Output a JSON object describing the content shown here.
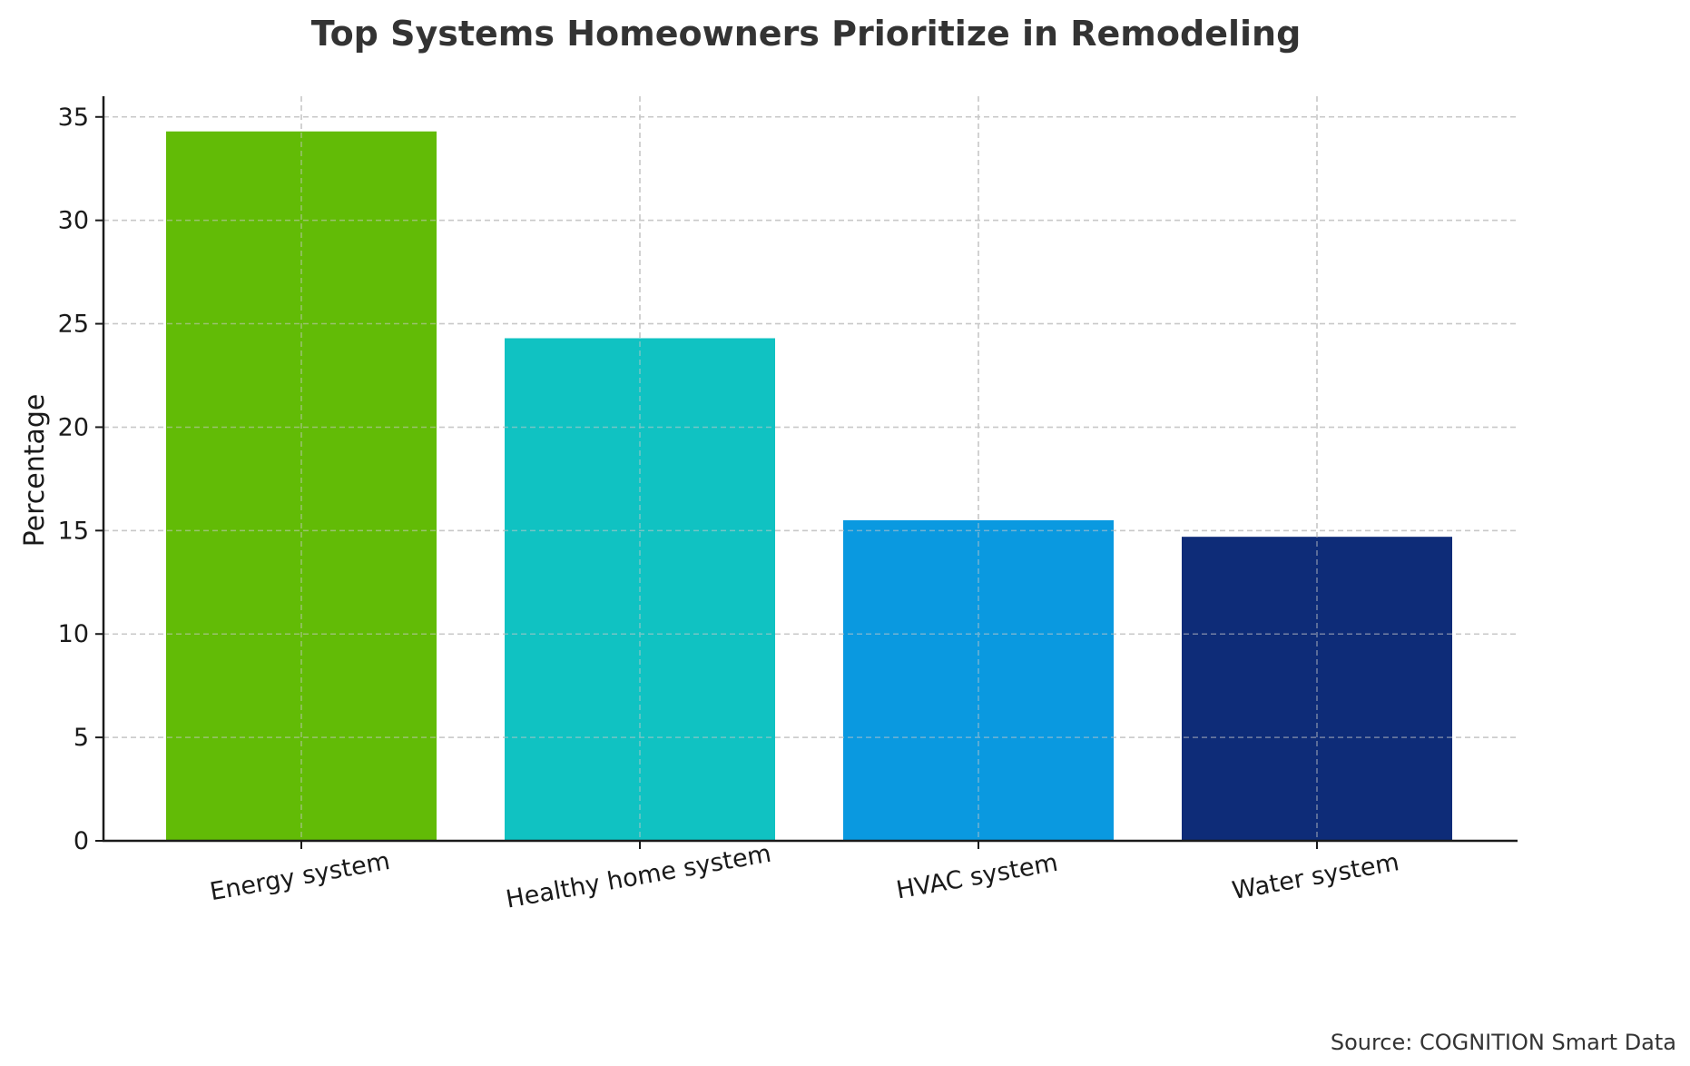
{
  "chart_data": {
    "type": "bar",
    "title": "Top Systems Homeowners Prioritize in Remodeling",
    "xlabel": "",
    "ylabel": "Percentage",
    "categories": [
      "Energy system",
      "Healthy home system",
      "HVAC system",
      "Water system"
    ],
    "values": [
      34.3,
      24.3,
      15.5,
      14.7
    ],
    "colors": [
      "#62bb06",
      "#10c2c2",
      "#0a99e0",
      "#0e2c78"
    ],
    "ylim": [
      0,
      36
    ],
    "yticks": [
      0,
      5,
      10,
      15,
      20,
      25,
      30,
      35
    ],
    "grid": true,
    "source": "Source: COGNITION Smart Data"
  }
}
